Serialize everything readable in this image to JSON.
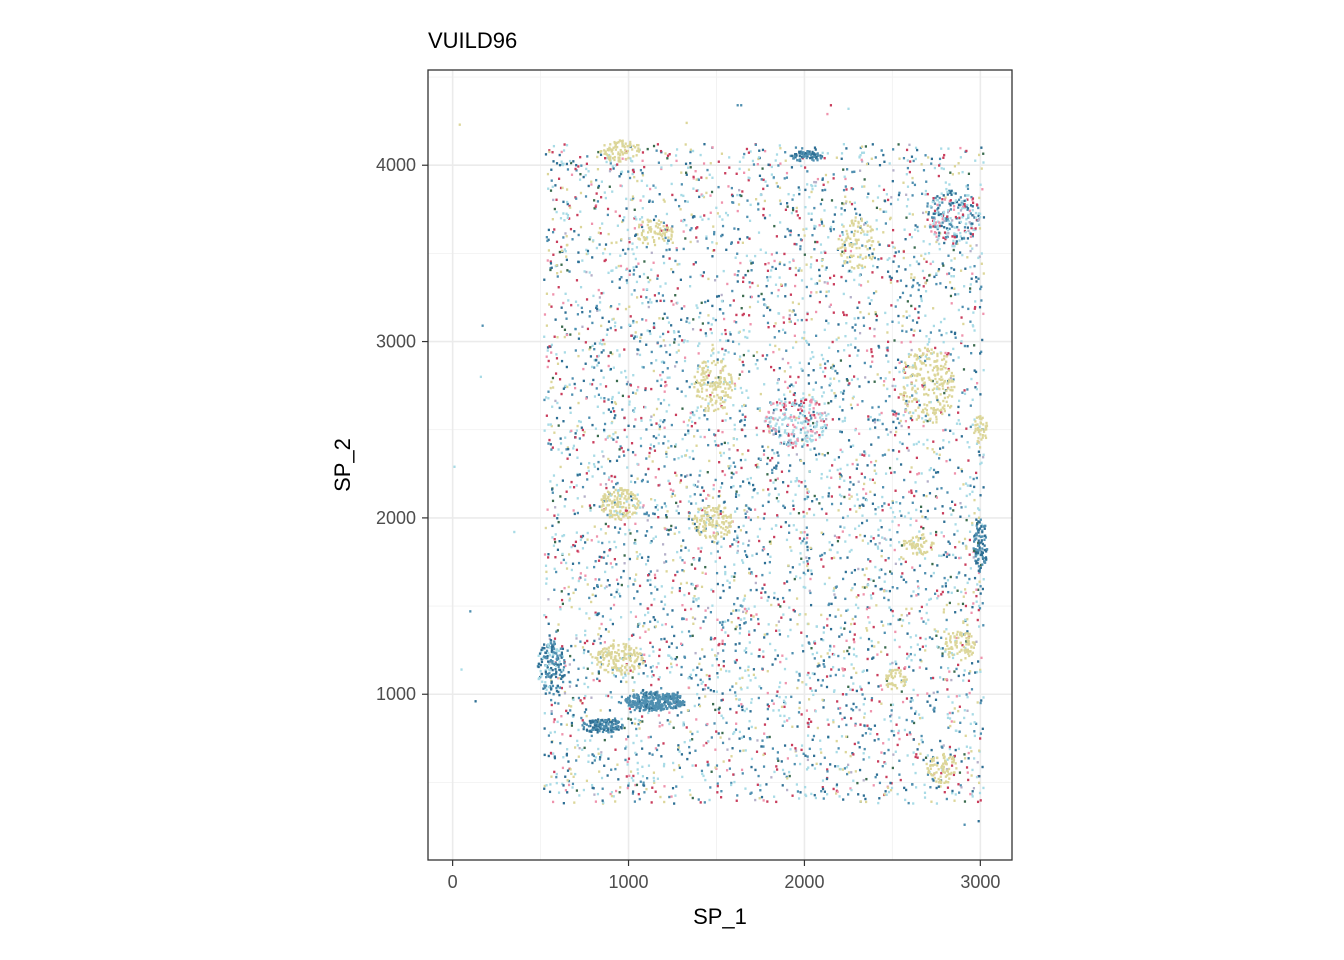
{
  "chart_data": {
    "type": "scatter",
    "title": "VUILD96",
    "xlabel": "SP_1",
    "ylabel": "SP_2",
    "xlim": [
      -140,
      3180
    ],
    "ylim": [
      60,
      4540
    ],
    "x_ticks": [
      0,
      1000,
      2000,
      3000
    ],
    "x_tick_labels": [
      "0",
      "1000",
      "2000",
      "3000"
    ],
    "y_ticks": [
      1000,
      2000,
      3000,
      4000
    ],
    "y_tick_labels": [
      "1000",
      "2000",
      "3000",
      "4000"
    ],
    "grid": true,
    "theme": "bw",
    "legend": "none",
    "palette": [
      "#a8dbe6",
      "#4f8fb0",
      "#2e6f94",
      "#dcd699",
      "#c93d5c",
      "#ef93ad",
      "#3a6b4e",
      "#b5b0c9"
    ],
    "density_regions": [
      {
        "x_range": [
          520,
          3020
        ],
        "y_range": [
          380,
          4120
        ],
        "points": 5200,
        "mix": [
          0.28,
          0.18,
          0.16,
          0.12,
          0.12,
          0.07,
          0.04,
          0.03
        ]
      },
      {
        "x_center": 1150,
        "y_center": 960,
        "rx": 170,
        "ry": 55,
        "points": 320,
        "mix": [
          0,
          0.9,
          0.1,
          0,
          0,
          0,
          0,
          0
        ]
      },
      {
        "x_center": 850,
        "y_center": 820,
        "rx": 120,
        "ry": 40,
        "points": 140,
        "mix": [
          0,
          0.5,
          0.5,
          0,
          0,
          0,
          0,
          0
        ]
      },
      {
        "x_center": 560,
        "y_center": 1150,
        "rx": 80,
        "ry": 160,
        "points": 160,
        "mix": [
          0.2,
          0.4,
          0.4,
          0,
          0,
          0,
          0,
          0
        ]
      },
      {
        "x_center": 950,
        "y_center": 1200,
        "rx": 140,
        "ry": 90,
        "points": 150,
        "mix": [
          0,
          0,
          0,
          1,
          0,
          0,
          0,
          0
        ]
      },
      {
        "x_center": 950,
        "y_center": 2080,
        "rx": 110,
        "ry": 90,
        "points": 140,
        "mix": [
          0.1,
          0,
          0,
          0.9,
          0,
          0,
          0,
          0
        ]
      },
      {
        "x_center": 1480,
        "y_center": 1980,
        "rx": 120,
        "ry": 100,
        "points": 120,
        "mix": [
          0,
          0,
          0,
          1,
          0,
          0,
          0,
          0
        ]
      },
      {
        "x_center": 1480,
        "y_center": 2750,
        "rx": 110,
        "ry": 160,
        "points": 140,
        "mix": [
          0,
          0,
          0,
          1,
          0,
          0,
          0,
          0
        ]
      },
      {
        "x_center": 2700,
        "y_center": 2750,
        "rx": 160,
        "ry": 220,
        "points": 220,
        "mix": [
          0,
          0,
          0,
          1,
          0,
          0,
          0,
          0
        ]
      },
      {
        "x_center": 2650,
        "y_center": 1850,
        "rx": 90,
        "ry": 60,
        "points": 60,
        "mix": [
          0,
          0,
          0,
          1,
          0,
          0,
          0,
          0
        ]
      },
      {
        "x_center": 2880,
        "y_center": 1280,
        "rx": 90,
        "ry": 90,
        "points": 80,
        "mix": [
          0,
          0,
          0,
          1,
          0,
          0,
          0,
          0
        ]
      },
      {
        "x_center": 2780,
        "y_center": 580,
        "rx": 90,
        "ry": 90,
        "points": 80,
        "mix": [
          0,
          0,
          0,
          1,
          0,
          0,
          0,
          0
        ]
      },
      {
        "x_center": 2520,
        "y_center": 1080,
        "rx": 70,
        "ry": 60,
        "points": 50,
        "mix": [
          0,
          0,
          0,
          1,
          0,
          0,
          0,
          0
        ]
      },
      {
        "x_center": 950,
        "y_center": 4080,
        "rx": 120,
        "ry": 60,
        "points": 80,
        "mix": [
          0,
          0,
          0,
          1,
          0,
          0,
          0,
          0
        ]
      },
      {
        "x_center": 1150,
        "y_center": 3620,
        "rx": 110,
        "ry": 80,
        "points": 70,
        "mix": [
          0,
          0,
          0,
          1,
          0,
          0,
          0,
          0
        ]
      },
      {
        "x_center": 2300,
        "y_center": 3550,
        "rx": 110,
        "ry": 150,
        "points": 90,
        "mix": [
          0,
          0,
          0,
          1,
          0,
          0,
          0,
          0
        ]
      },
      {
        "x_center": 2010,
        "y_center": 4050,
        "rx": 90,
        "ry": 30,
        "points": 70,
        "mix": [
          0,
          0.5,
          0.5,
          0,
          0,
          0,
          0,
          0
        ]
      },
      {
        "x_center": 3000,
        "y_center": 2500,
        "rx": 40,
        "ry": 80,
        "points": 40,
        "mix": [
          0,
          0,
          0,
          1,
          0,
          0,
          0,
          0
        ]
      },
      {
        "x_center": 3000,
        "y_center": 1850,
        "rx": 40,
        "ry": 160,
        "points": 90,
        "mix": [
          0,
          0.4,
          0.5,
          0,
          0,
          0,
          0.1,
          0
        ]
      },
      {
        "x_center": 1950,
        "y_center": 2550,
        "rx": 180,
        "ry": 160,
        "points": 220,
        "mix": [
          0.4,
          0.1,
          0.1,
          0,
          0.1,
          0.2,
          0,
          0.1
        ]
      },
      {
        "x_center": 2850,
        "y_center": 3700,
        "rx": 150,
        "ry": 160,
        "points": 200,
        "mix": [
          0.3,
          0.2,
          0.2,
          0,
          0.1,
          0.15,
          0,
          0.05
        ]
      }
    ],
    "outliers": [
      {
        "x": 40,
        "y": 4230,
        "c": 3
      },
      {
        "x": 170,
        "y": 3090,
        "c": 1
      },
      {
        "x": 160,
        "y": 2800,
        "c": 0
      },
      {
        "x": 10,
        "y": 2290,
        "c": 0
      },
      {
        "x": 100,
        "y": 1470,
        "c": 1
      },
      {
        "x": 50,
        "y": 1140,
        "c": 0
      },
      {
        "x": 130,
        "y": 960,
        "c": 2
      },
      {
        "x": 350,
        "y": 1920,
        "c": 0
      },
      {
        "x": 1620,
        "y": 4340,
        "c": 1
      },
      {
        "x": 1640,
        "y": 4340,
        "c": 1
      },
      {
        "x": 2150,
        "y": 4340,
        "c": 4
      },
      {
        "x": 2130,
        "y": 4290,
        "c": 5
      },
      {
        "x": 2250,
        "y": 4320,
        "c": 0
      },
      {
        "x": 1330,
        "y": 4240,
        "c": 3
      },
      {
        "x": 2910,
        "y": 260,
        "c": 1
      },
      {
        "x": 2990,
        "y": 280,
        "c": 2
      }
    ]
  }
}
